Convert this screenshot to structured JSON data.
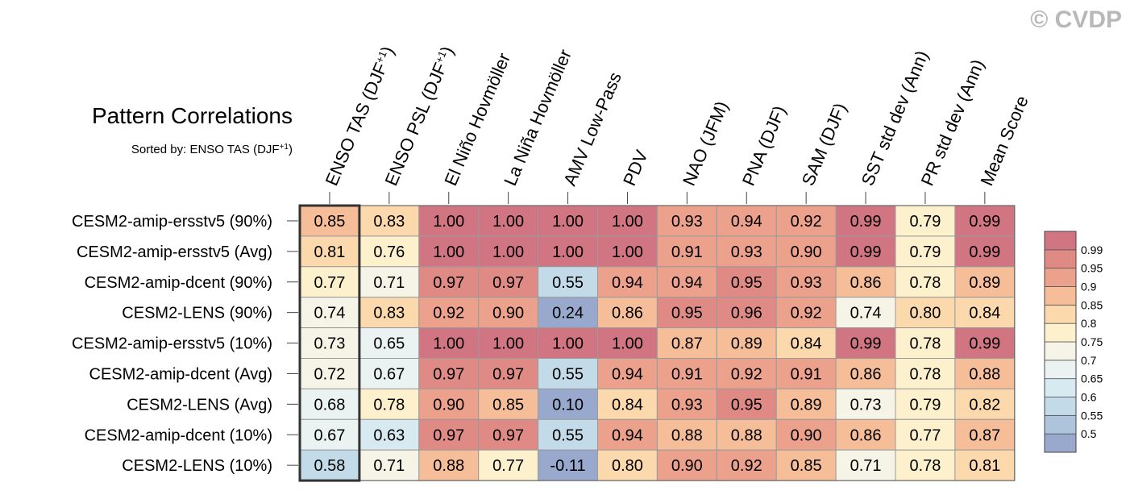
{
  "watermark": "© CVDP",
  "chart_data": {
    "type": "heatmap",
    "title": "Pattern Correlations",
    "subtitle_prefix": "Sorted by: ENSO TAS (DJF",
    "subtitle_sup": "+1",
    "subtitle_suffix": ")",
    "columns": [
      {
        "label": "ENSO TAS (DJF",
        "sup": "+1",
        "suffix": ")"
      },
      {
        "label": "ENSO PSL (DJF",
        "sup": "+1",
        "suffix": ")"
      },
      {
        "label": "El Niño Hovmöller",
        "sup": "",
        "suffix": ""
      },
      {
        "label": "La Niña Hovmöller",
        "sup": "",
        "suffix": ""
      },
      {
        "label": "AMV Low-Pass",
        "sup": "",
        "suffix": ""
      },
      {
        "label": "PDV",
        "sup": "",
        "suffix": ""
      },
      {
        "label": "NAO (JFM)",
        "sup": "",
        "suffix": ""
      },
      {
        "label": "PNA (DJF)",
        "sup": "",
        "suffix": ""
      },
      {
        "label": "SAM (DJF)",
        "sup": "",
        "suffix": ""
      },
      {
        "label": "SST std dev (Ann)",
        "sup": "",
        "suffix": ""
      },
      {
        "label": "PR std dev (Ann)",
        "sup": "",
        "suffix": ""
      },
      {
        "label": "Mean Score",
        "sup": "",
        "suffix": ""
      }
    ],
    "rows": [
      "CESM2-amip-ersstv5 (90%)",
      "CESM2-amip-ersstv5 (Avg)",
      "CESM2-amip-dcent (90%)",
      "CESM2-LENS (90%)",
      "CESM2-amip-ersstv5 (10%)",
      "CESM2-amip-dcent (Avg)",
      "CESM2-LENS (Avg)",
      "CESM2-amip-dcent (10%)",
      "CESM2-LENS (10%)"
    ],
    "values": [
      [
        "0.85",
        "0.83",
        "1.00",
        "1.00",
        "1.00",
        "1.00",
        "0.93",
        "0.94",
        "0.92",
        "0.99",
        "0.79",
        "0.99"
      ],
      [
        "0.81",
        "0.76",
        "1.00",
        "1.00",
        "1.00",
        "1.00",
        "0.91",
        "0.93",
        "0.90",
        "0.99",
        "0.79",
        "0.99"
      ],
      [
        "0.77",
        "0.71",
        "0.97",
        "0.97",
        "0.55",
        "0.94",
        "0.94",
        "0.95",
        "0.93",
        "0.86",
        "0.78",
        "0.89"
      ],
      [
        "0.74",
        "0.83",
        "0.92",
        "0.90",
        "0.24",
        "0.86",
        "0.95",
        "0.96",
        "0.92",
        "0.74",
        "0.80",
        "0.84"
      ],
      [
        "0.73",
        "0.65",
        "1.00",
        "1.00",
        "1.00",
        "1.00",
        "0.87",
        "0.89",
        "0.84",
        "0.99",
        "0.78",
        "0.99"
      ],
      [
        "0.72",
        "0.67",
        "0.97",
        "0.97",
        "0.55",
        "0.94",
        "0.91",
        "0.92",
        "0.91",
        "0.86",
        "0.78",
        "0.88"
      ],
      [
        "0.68",
        "0.78",
        "0.90",
        "0.85",
        "0.10",
        "0.84",
        "0.93",
        "0.95",
        "0.89",
        "0.73",
        "0.79",
        "0.82"
      ],
      [
        "0.67",
        "0.63",
        "0.97",
        "0.97",
        "0.55",
        "0.94",
        "0.88",
        "0.88",
        "0.90",
        "0.86",
        "0.77",
        "0.87"
      ],
      [
        "0.58",
        "0.71",
        "0.88",
        "0.77",
        "-0.11",
        "0.80",
        "0.90",
        "0.92",
        "0.85",
        "0.71",
        "0.78",
        "0.81"
      ]
    ],
    "sorted_column_index": 0,
    "colorbar": {
      "boundaries": [
        0.5,
        0.55,
        0.6,
        0.65,
        0.7,
        0.75,
        0.8,
        0.85,
        0.9,
        0.95,
        0.99
      ],
      "labels": [
        "0.5",
        "0.55",
        "0.6",
        "0.65",
        "0.7",
        "0.75",
        "0.8",
        "0.85",
        "0.9",
        "0.95",
        "0.99"
      ],
      "colors": [
        "#98a9cd",
        "#aec3dc",
        "#c3dbe9",
        "#d8eaf1",
        "#eaf3f2",
        "#f5f4e6",
        "#fdf0cc",
        "#fbd9ad",
        "#f6bd99",
        "#eca18c",
        "#e08a86",
        "#d27582"
      ]
    }
  }
}
